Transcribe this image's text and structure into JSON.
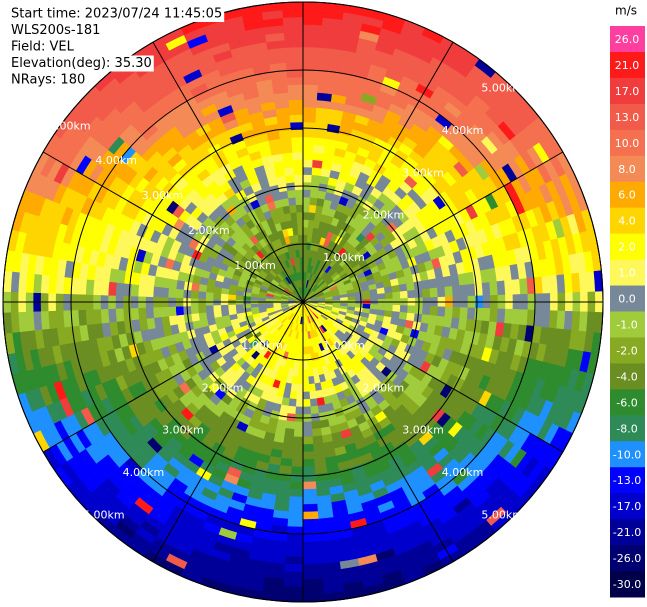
{
  "chart_data": {
    "type": "ppi",
    "info": [
      "Start time: 2023/07/24 11:45:05",
      "WLS200s-181",
      "Field: VEL",
      "Elevation(deg): 35.30",
      "NRays: 180"
    ],
    "range_labels": [
      "1.00km",
      "2.00km",
      "3.00km",
      "4.00km",
      "5.00km"
    ],
    "colorbar": {
      "unit": "m/s",
      "ticks": [
        {
          "value": 26,
          "label": "26.0"
        },
        {
          "value": 21,
          "label": "21.0"
        },
        {
          "value": 17,
          "label": "17.0"
        },
        {
          "value": 13,
          "label": "13.0"
        },
        {
          "value": 10,
          "label": "10.0"
        },
        {
          "value": 8,
          "label": "8.0"
        },
        {
          "value": 6,
          "label": "6.0"
        },
        {
          "value": 4,
          "label": "4.0"
        },
        {
          "value": 2,
          "label": "2.0"
        },
        {
          "value": 1,
          "label": "1.0"
        },
        {
          "value": 0,
          "label": "0.0"
        },
        {
          "value": -1,
          "label": "-1.0"
        },
        {
          "value": -2,
          "label": "-2.0"
        },
        {
          "value": -4,
          "label": "-4.0"
        },
        {
          "value": -6,
          "label": "-6.0"
        },
        {
          "value": -8,
          "label": "-8.0"
        },
        {
          "value": -10,
          "label": "-10.0"
        },
        {
          "value": -13,
          "label": "-13.0"
        },
        {
          "value": -17,
          "label": "-17.0"
        },
        {
          "value": -21,
          "label": "-21.0"
        },
        {
          "value": -26,
          "label": "-26.0"
        },
        {
          "value": -30,
          "label": "-30.0"
        }
      ],
      "colors": [
        "#ff3fa0",
        "#ff1a1a",
        "#f03c3c",
        "#f25a4a",
        "#f4704f",
        "#f48a55",
        "#ffaa00",
        "#ffd500",
        "#ffff00",
        "#fff85a",
        "#778899",
        "#a0cc3c",
        "#88aa22",
        "#6b8e23",
        "#2e8b2e",
        "#2e8b57",
        "#1e90ff",
        "#0000ff",
        "#0000cc",
        "#000099",
        "#000070",
        "#00004a"
      ]
    }
  }
}
